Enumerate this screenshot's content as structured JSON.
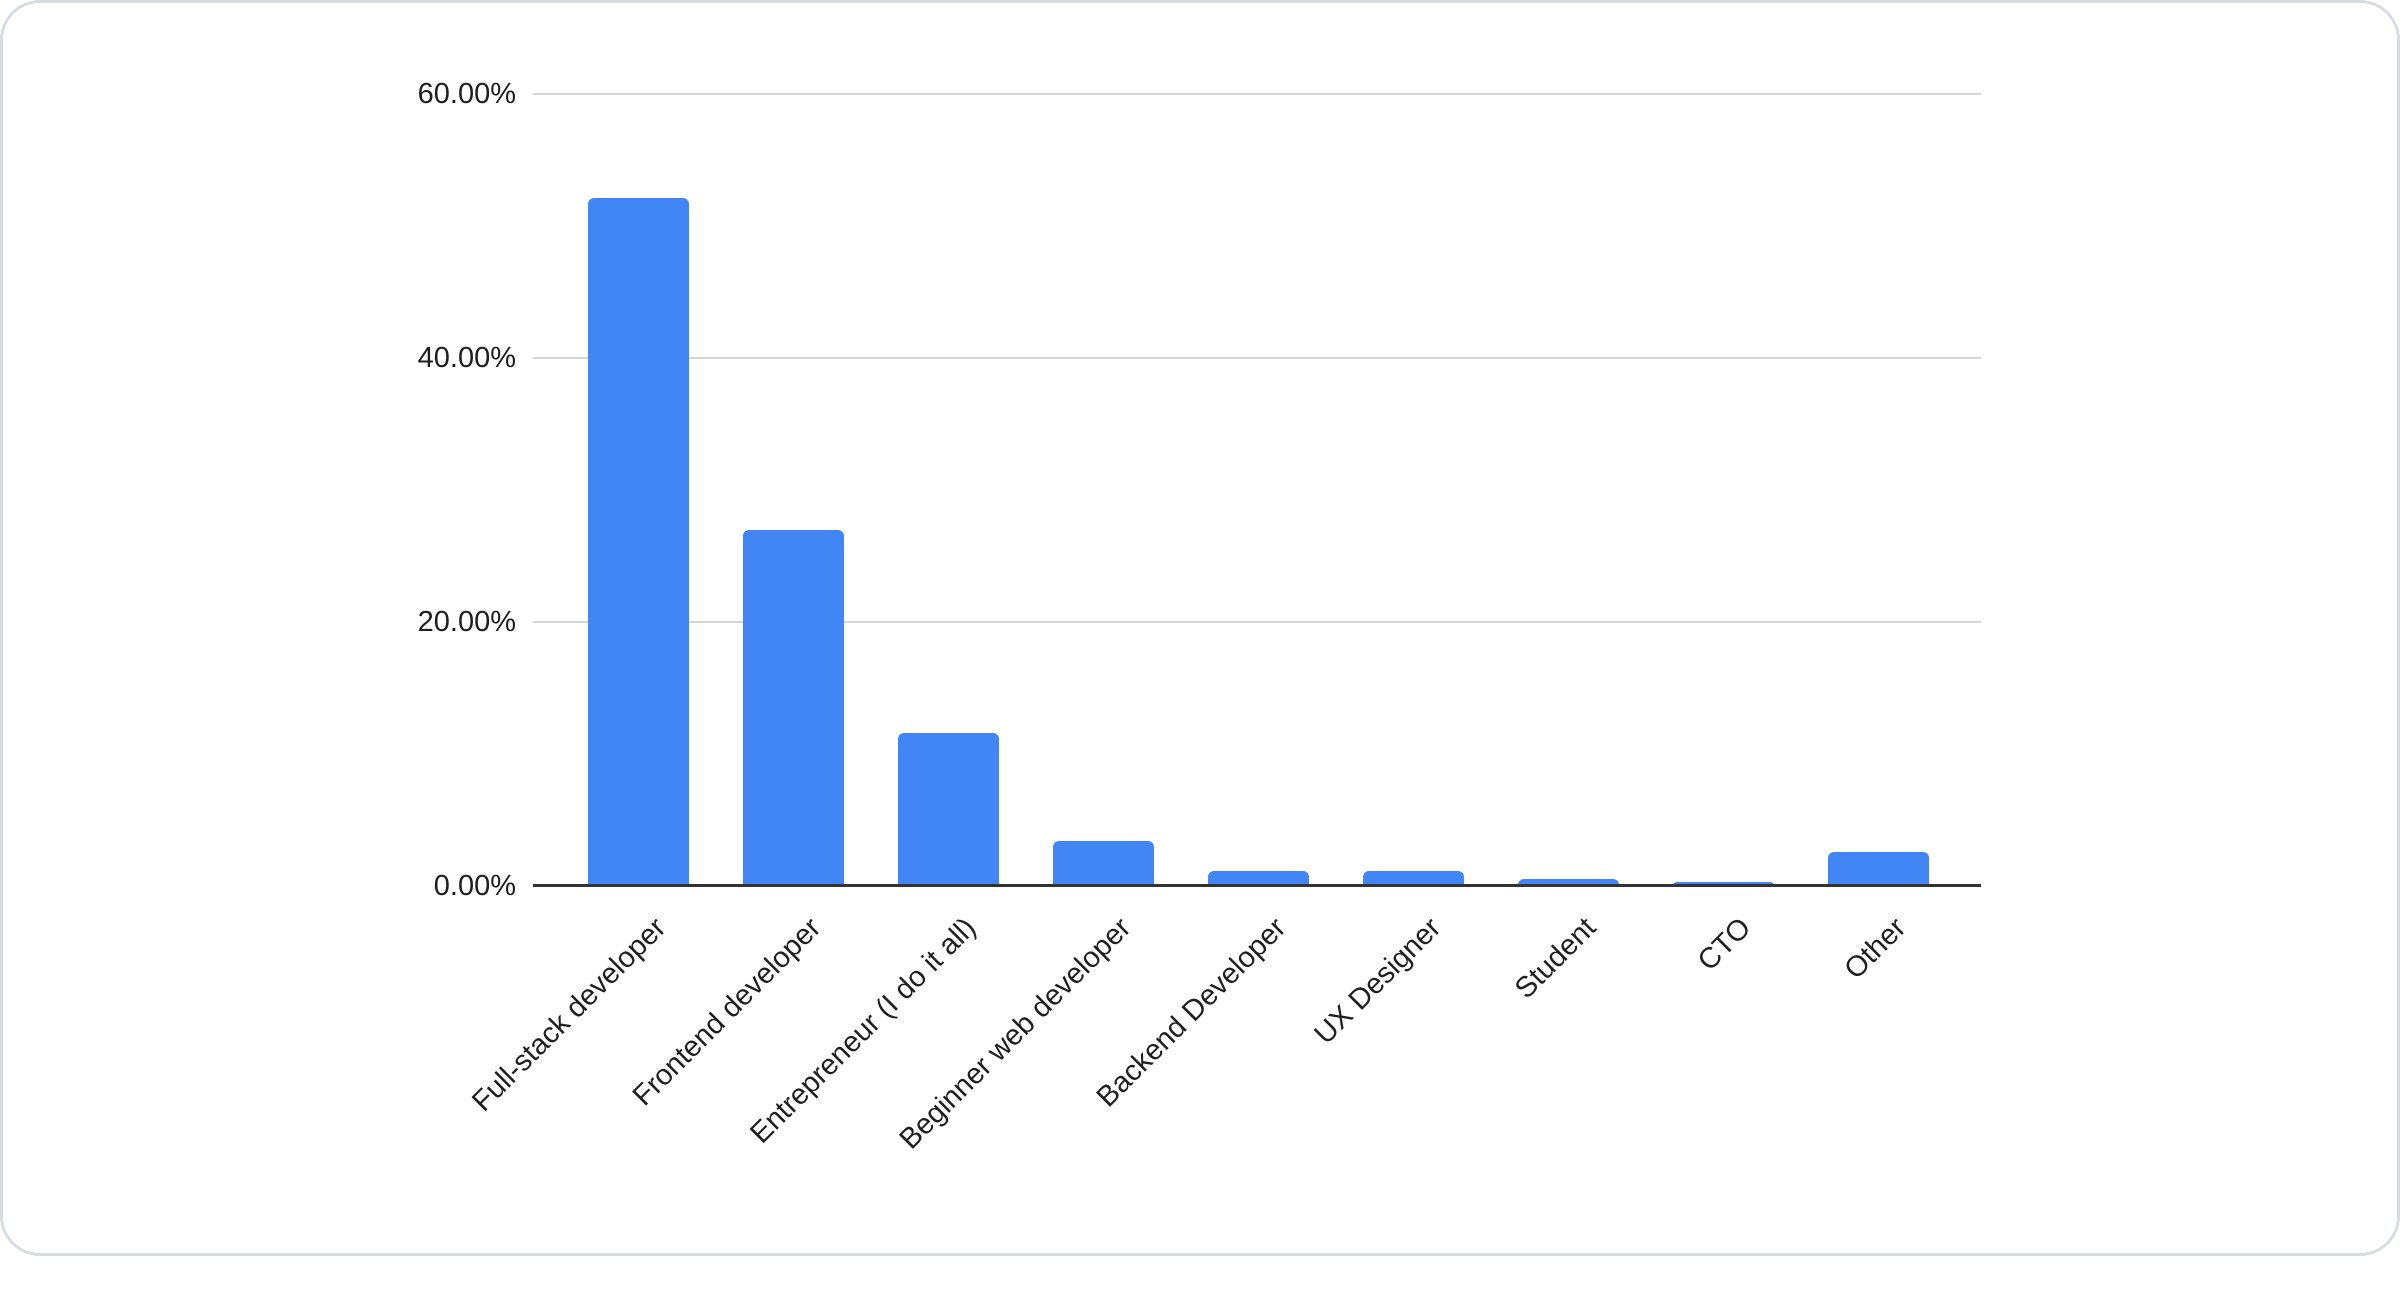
{
  "chart_data": {
    "type": "bar",
    "title": "",
    "xlabel": "",
    "ylabel": "",
    "categories": [
      "Full-stack developer",
      "Frontend developer",
      "Entrepreneur (I do it all)",
      "Beginner web developer",
      "Backend Developer",
      "UX Designer",
      "Student",
      "CTO",
      "Other"
    ],
    "values": [
      52.1,
      27.0,
      11.6,
      3.4,
      1.1,
      1.1,
      0.5,
      0.3,
      2.6
    ],
    "value_unit": "%",
    "ylim": [
      0,
      60
    ],
    "yticks": [
      {
        "value": 0,
        "label": "0.00%"
      },
      {
        "value": 20,
        "label": "20.00%"
      },
      {
        "value": 40,
        "label": "40.00%"
      },
      {
        "value": 60,
        "label": "60.00%"
      }
    ],
    "grid": true,
    "legend": "none",
    "x_label_rotation_deg": 45
  },
  "colors": {
    "bar": "#4285f4",
    "gridline": "#d6d6d6",
    "axis_line": "#333333",
    "text": "#1f1f1f",
    "card_background": "#ffffff",
    "card_border": "#d7dce0"
  }
}
